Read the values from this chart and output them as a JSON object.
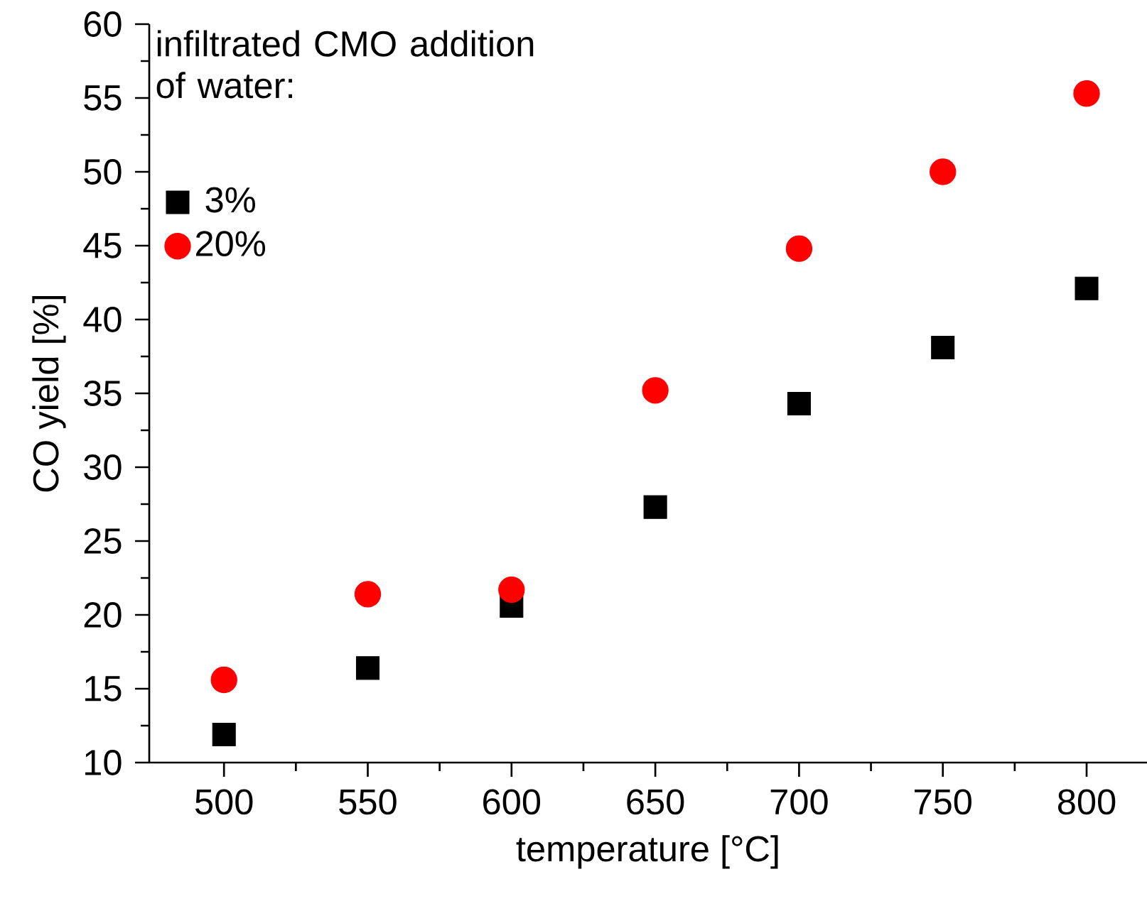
{
  "chart_data": {
    "type": "scatter",
    "xlabel": "temperature [°C]",
    "ylabel": "CO yield [%]",
    "legend_title": "infiltrated CMO addition of water:",
    "legend": "top left",
    "x": [
      500,
      550,
      600,
      650,
      700,
      750,
      800
    ],
    "series": [
      {
        "name": "3%",
        "color": "#000000",
        "marker": "square",
        "values": [
          11.9,
          16.4,
          20.6,
          27.3,
          34.3,
          38.1,
          42.1
        ]
      },
      {
        "name": "20%",
        "color": "#ff0000",
        "marker": "circle",
        "values": [
          15.6,
          21.4,
          21.7,
          35.2,
          44.8,
          50.0,
          55.3
        ]
      }
    ],
    "xlim": [
      474,
      821
    ],
    "ylim": [
      10,
      60
    ],
    "xticks": [
      500,
      550,
      600,
      650,
      700,
      750,
      800
    ],
    "yticks": [
      10,
      15,
      20,
      25,
      30,
      35,
      40,
      45,
      50,
      55,
      60
    ]
  }
}
